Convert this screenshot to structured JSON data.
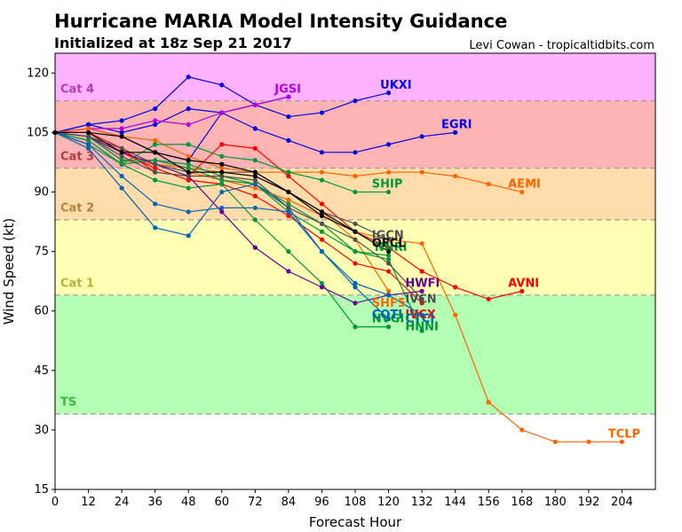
{
  "chart_data": {
    "type": "line",
    "title": "Hurricane MARIA Model Intensity Guidance",
    "subtitle": "Initialized at 18z Sep 21 2017",
    "credit": "Levi Cowan - tropicaltidbits.com",
    "xlabel": "Forecast Hour",
    "ylabel": "Wind Speed (kt)",
    "xlim": [
      0,
      216
    ],
    "ylim": [
      15,
      125
    ],
    "xticks": [
      0,
      12,
      24,
      36,
      48,
      60,
      72,
      84,
      96,
      108,
      120,
      132,
      144,
      156,
      168,
      180,
      192,
      204
    ],
    "yticks": [
      15,
      30,
      45,
      60,
      75,
      90,
      105,
      120
    ],
    "bands": [
      {
        "name": "TS",
        "label": "TS",
        "ymin": 34,
        "ymax": 64,
        "fill": "#b3ffb3",
        "label_color": "#3cb43c",
        "label_y": 37
      },
      {
        "name": "cat1",
        "label": "Cat 1",
        "ymin": 64,
        "ymax": 83,
        "fill": "#ffffb3",
        "label_color": "#b4b43c",
        "label_y": 67
      },
      {
        "name": "cat2",
        "label": "Cat 2",
        "ymin": 83,
        "ymax": 96,
        "fill": "#ffdcaa",
        "label_color": "#b4823c",
        "label_y": 86
      },
      {
        "name": "cat3",
        "label": "Cat 3",
        "ymin": 96,
        "ymax": 113,
        "fill": "#ffb4b4",
        "label_color": "#b43c3c",
        "label_y": 99
      },
      {
        "name": "cat4",
        "label": "Cat 4",
        "ymin": 113,
        "ymax": 125,
        "fill": "#ffb3ff",
        "label_color": "#b43cb4",
        "label_y": 116
      }
    ],
    "series": [
      {
        "name": "UKXI",
        "label": "UKXI",
        "color": "#0000e6",
        "x": [
          0,
          12,
          24,
          36,
          48,
          60,
          72,
          84,
          96,
          108,
          120
        ],
        "y": [
          105,
          107,
          108,
          111,
          119,
          117,
          112,
          114,
          null,
          null,
          null
        ],
        "label_x": 117,
        "label_y": 117
      },
      {
        "name": "UKXI-b",
        "label": "",
        "color": "#0000e6",
        "x": [
          0,
          12,
          24,
          36,
          48,
          60,
          72,
          84,
          96,
          108,
          120
        ],
        "y": [
          105,
          107,
          105,
          107,
          111,
          110,
          112,
          109,
          110,
          113,
          115
        ]
      },
      {
        "name": "EGRI",
        "label": "EGRI",
        "color": "#0000e6",
        "x": [
          0,
          12,
          24,
          36,
          48,
          60,
          72,
          84,
          96,
          108,
          120,
          132,
          144
        ],
        "y": [
          105,
          106,
          104,
          100,
          98,
          110,
          106,
          103,
          100,
          100,
          102,
          104,
          105
        ],
        "label_x": 139,
        "label_y": 107
      },
      {
        "name": "JGSI",
        "label": "JGSI",
        "color": "#b400e6",
        "x": [
          0,
          12,
          24,
          36,
          48,
          60,
          72,
          84
        ],
        "y": [
          105,
          106,
          106,
          108,
          107,
          110,
          112,
          114
        ],
        "label_x": 79,
        "label_y": 116
      },
      {
        "name": "AEMI",
        "label": "AEMI",
        "color": "#ff6400",
        "x": [
          0,
          12,
          24,
          36,
          48,
          60,
          72,
          84,
          96,
          108,
          120,
          132,
          144,
          156,
          168
        ],
        "y": [
          105,
          106,
          104,
          103,
          99,
          96,
          95,
          95,
          95,
          94,
          95,
          95,
          94,
          92,
          90
        ],
        "label_x": 163,
        "label_y": 92
      },
      {
        "name": "TCLP",
        "label": "TCLP",
        "color": "#ff6400",
        "x": [
          0,
          12,
          24,
          36,
          48,
          60,
          72,
          84,
          96,
          108,
          120,
          132,
          144,
          156,
          168,
          180,
          192,
          204
        ],
        "y": [
          105,
          105,
          100,
          97,
          95,
          93,
          91,
          88,
          84,
          80,
          78,
          77,
          59,
          37,
          30,
          27,
          27,
          27
        ],
        "label_x": 199,
        "label_y": 29
      },
      {
        "name": "SHF5",
        "label": "SHF5",
        "color": "#ff6400",
        "x": [
          0,
          12,
          24,
          36,
          48,
          60,
          72,
          84,
          96,
          108,
          120
        ],
        "y": [
          105,
          104,
          98,
          97,
          96,
          95,
          94,
          90,
          85,
          78,
          65
        ],
        "label_x": 114,
        "label_y": 62
      },
      {
        "name": "AVNI",
        "label": "AVNI",
        "color": "#ff0000",
        "x": [
          0,
          12,
          24,
          36,
          48,
          60,
          72,
          84,
          96,
          108,
          120,
          132,
          144,
          156,
          168
        ],
        "y": [
          105,
          105,
          101,
          95,
          94,
          102,
          101,
          94,
          87,
          80,
          76,
          70,
          66,
          63,
          65
        ],
        "label_x": 163,
        "label_y": 67
      },
      {
        "name": "IVCX",
        "label": "IVCX",
        "color": "#ff0000",
        "x": [
          0,
          12,
          24,
          36,
          48,
          60,
          72,
          84,
          96,
          108,
          120,
          132
        ],
        "y": [
          105,
          104,
          100,
          96,
          93,
          92,
          89,
          84,
          78,
          72,
          70,
          62
        ],
        "label_x": 126,
        "label_y": 59
      },
      {
        "name": "SHIP",
        "label": "SHIP",
        "color": "#00963c",
        "x": [
          0,
          12,
          24,
          36,
          48,
          60,
          72,
          84,
          96,
          108,
          120
        ],
        "y": [
          105,
          103,
          97,
          102,
          102,
          99,
          98,
          95,
          93,
          90,
          90
        ],
        "label_x": 114,
        "label_y": 92
      },
      {
        "name": "NVGI",
        "label": "NVGI",
        "color": "#00963c",
        "x": [
          0,
          12,
          24,
          36,
          48,
          60,
          72,
          84,
          96,
          108,
          120
        ],
        "y": [
          105,
          103,
          97,
          93,
          91,
          92,
          83,
          75,
          67,
          56,
          56
        ],
        "label_x": 114,
        "label_y": 58
      },
      {
        "name": "HNNI",
        "label": "HNNI",
        "color": "#00963c",
        "x": [
          0,
          12,
          24,
          36,
          48,
          60,
          72,
          84,
          96,
          108,
          120,
          132
        ],
        "y": [
          105,
          102,
          97,
          98,
          97,
          94,
          92,
          85,
          80,
          75,
          73,
          55
        ],
        "label_x": 126,
        "label_y": 56
      },
      {
        "name": "NNRI",
        "label": "NNRI",
        "color": "#00963c",
        "x": [
          0,
          12,
          24,
          36,
          48,
          60,
          72,
          84,
          96,
          108,
          120
        ],
        "y": [
          105,
          104,
          98,
          98,
          96,
          93,
          92,
          87,
          82,
          75,
          74
        ],
        "label_x": 115,
        "label_y": 76
      },
      {
        "name": "HWFI",
        "label": "HWFI",
        "color": "#640096",
        "x": [
          0,
          12,
          24,
          36,
          48,
          60,
          72,
          84,
          96,
          108,
          120,
          132
        ],
        "y": [
          105,
          104,
          100,
          97,
          94,
          85,
          76,
          70,
          66,
          62,
          64,
          65
        ],
        "label_x": 126,
        "label_y": 67
      },
      {
        "name": "COTI",
        "label": "COTI",
        "color": "#0064b4",
        "x": [
          0,
          12,
          24,
          36,
          48,
          60,
          72,
          84,
          96,
          108,
          120
        ],
        "y": [
          105,
          101,
          91,
          81,
          79,
          90,
          92,
          86,
          75,
          66,
          58
        ],
        "label_x": 114,
        "label_y": 59
      },
      {
        "name": "CTCI",
        "label": "CTCI",
        "color": "#0064b4",
        "x": [
          0,
          12,
          24,
          36,
          48,
          60,
          72,
          84,
          96,
          108,
          120,
          132
        ],
        "y": [
          105,
          102,
          94,
          87,
          85,
          86,
          86,
          85,
          75,
          67,
          64,
          59
        ],
        "label_x": 126,
        "label_y": 58
      },
      {
        "name": "IVCN",
        "label": "IVCN",
        "color": "#505050",
        "x": [
          0,
          12,
          24,
          36,
          48,
          60,
          72,
          84,
          96,
          108,
          120,
          132
        ],
        "y": [
          105,
          104,
          99,
          95,
          94,
          94,
          93,
          86,
          82,
          78,
          72,
          63
        ],
        "label_x": 126,
        "label_y": 63
      },
      {
        "name": "IGCN",
        "label": "IGCN",
        "color": "#505050",
        "x": [
          0,
          12,
          24,
          36,
          48,
          60,
          72,
          84,
          96,
          108,
          120
        ],
        "y": [
          105,
          104,
          101,
          97,
          95,
          95,
          95,
          90,
          85,
          82,
          78
        ],
        "label_x": 114,
        "label_y": 79
      },
      {
        "name": "OFCL",
        "label": "OFCL",
        "color": "#000000",
        "x": [
          0,
          12,
          24,
          36,
          48,
          60,
          72,
          84,
          96,
          108,
          120
        ],
        "y": [
          105,
          105,
          100,
          100,
          98,
          97,
          95,
          90,
          85,
          80,
          75
        ],
        "label_x": 114,
        "label_y": 77
      },
      {
        "name": "OFCL-b",
        "label": "",
        "color": "#000000",
        "x": [
          0,
          12,
          24,
          36,
          48,
          60,
          72,
          84,
          96,
          108
        ],
        "y": [
          105,
          105,
          104,
          100,
          95,
          95,
          94,
          90,
          84,
          80
        ]
      }
    ]
  }
}
